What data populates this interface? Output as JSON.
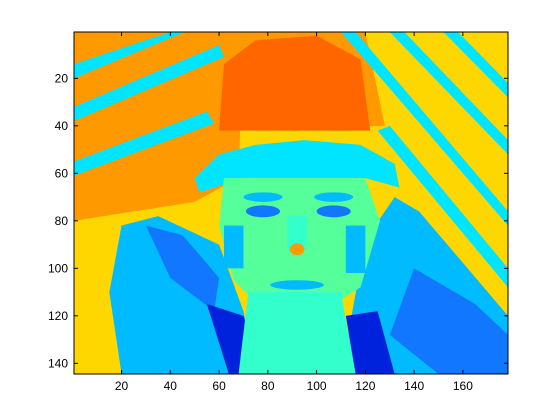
{
  "chart_data": {
    "type": "heatmap",
    "colormap": "jet",
    "x_range": [
      0.5,
      178.5
    ],
    "y_range": [
      0.5,
      144.5
    ],
    "y_direction": "top-to-bottom",
    "x_ticks": [
      20,
      40,
      60,
      80,
      100,
      120,
      140,
      160
    ],
    "y_ticks": [
      20,
      40,
      60,
      80,
      100,
      120,
      140
    ],
    "image_size": {
      "columns": 178,
      "rows": 144
    },
    "subject": "low-resolution false-colour image: person's face wearing a hat, diagonal stripes in background",
    "colors": {
      "dark_orange": "#ff6600",
      "orange": "#ff9900",
      "gold": "#ffd700",
      "yellow": "#ffee00",
      "cyan": "#00e5ff",
      "light_green": "#55ff99",
      "green_cyan": "#33ffcc",
      "sky": "#00bbff",
      "blue": "#1177ff",
      "dark_blue": "#0022dd"
    }
  }
}
